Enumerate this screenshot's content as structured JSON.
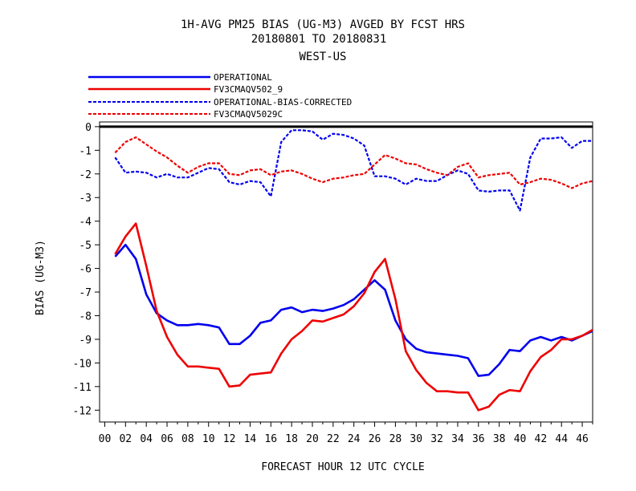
{
  "chart_data": {
    "type": "line",
    "title": [
      "1H-AVG PM25 BIAS (UG-M3)  AVGED BY FCST HRS",
      "20180801 TO 20180831",
      "WEST-US"
    ],
    "xlabel": "FORECAST HOUR  12 UTC CYCLE",
    "ylabel": "BIAS (UG-M3)",
    "xlim": [
      -0.5,
      47
    ],
    "ylim": [
      -12.5,
      0.2
    ],
    "xticks": [
      0,
      2,
      4,
      6,
      8,
      10,
      12,
      14,
      16,
      18,
      20,
      22,
      24,
      26,
      28,
      30,
      32,
      34,
      36,
      38,
      40,
      42,
      44,
      46
    ],
    "xtick_labels": [
      "00",
      "02",
      "04",
      "06",
      "08",
      "10",
      "12",
      "14",
      "16",
      "18",
      "20",
      "22",
      "24",
      "26",
      "28",
      "30",
      "32",
      "34",
      "36",
      "38",
      "40",
      "42",
      "44",
      "46"
    ],
    "yticks": [
      0,
      -1,
      -2,
      -3,
      -4,
      -5,
      -6,
      -7,
      -8,
      -9,
      -10,
      -11,
      -12
    ],
    "ytick_labels": [
      "0",
      "-1",
      "-2",
      "-3",
      "-4",
      "-5",
      "-6",
      "-7",
      "-8",
      "-9",
      "-10",
      "-11",
      "-12"
    ],
    "reference_line": 0,
    "grid": false,
    "legend_position": "top-left",
    "x": [
      1,
      2,
      3,
      4,
      5,
      6,
      7,
      8,
      9,
      10,
      11,
      12,
      13,
      14,
      15,
      16,
      17,
      18,
      19,
      20,
      21,
      22,
      23,
      24,
      25,
      26,
      27,
      28,
      29,
      30,
      31,
      32,
      33,
      34,
      35,
      36,
      37,
      38,
      39,
      40,
      41,
      42,
      43,
      44,
      45,
      46,
      47
    ],
    "series": [
      {
        "name": "OPERATIONAL",
        "color": "#0000ee",
        "dash": "solid",
        "values": [
          -5.5,
          -5.0,
          -5.6,
          -7.1,
          -7.9,
          -8.2,
          -8.4,
          -8.4,
          -8.35,
          -8.4,
          -8.5,
          -9.2,
          -9.2,
          -8.85,
          -8.3,
          -8.2,
          -7.75,
          -7.65,
          -7.85,
          -7.75,
          -7.8,
          -7.7,
          -7.55,
          -7.3,
          -6.9,
          -6.5,
          -6.9,
          -8.2,
          -9.0,
          -9.4,
          -9.55,
          -9.6,
          -9.65,
          -9.7,
          -9.8,
          -10.55,
          -10.5,
          -10.05,
          -9.45,
          -9.5,
          -9.05,
          -8.9,
          -9.05,
          -8.9,
          -9.05,
          -8.85,
          -8.65
        ]
      },
      {
        "name": "FV3CMAQV502_9",
        "color": "#ee0000",
        "dash": "solid",
        "values": [
          -5.4,
          -4.65,
          -4.1,
          -5.9,
          -7.8,
          -8.9,
          -9.65,
          -10.15,
          -10.15,
          -10.2,
          -10.25,
          -11.0,
          -10.95,
          -10.5,
          -10.45,
          -10.4,
          -9.6,
          -9.0,
          -8.65,
          -8.2,
          -8.25,
          -8.1,
          -7.95,
          -7.6,
          -7.05,
          -6.15,
          -5.6,
          -7.3,
          -9.5,
          -10.3,
          -10.85,
          -11.2,
          -11.2,
          -11.25,
          -11.25,
          -12.0,
          -11.85,
          -11.35,
          -11.15,
          -11.2,
          -10.35,
          -9.75,
          -9.45,
          -9.0,
          -9.0,
          -8.85,
          -8.6
        ]
      },
      {
        "name": "OPERATIONAL-BIAS-CORRECTED",
        "color": "#0000ee",
        "dash": "dashed",
        "values": [
          -1.3,
          -1.95,
          -1.9,
          -1.95,
          -2.15,
          -2.0,
          -2.15,
          -2.15,
          -1.95,
          -1.75,
          -1.8,
          -2.35,
          -2.45,
          -2.3,
          -2.35,
          -2.95,
          -0.65,
          -0.15,
          -0.15,
          -0.2,
          -0.55,
          -0.3,
          -0.35,
          -0.5,
          -0.8,
          -2.1,
          -2.1,
          -2.2,
          -2.45,
          -2.2,
          -2.3,
          -2.3,
          -2.05,
          -1.85,
          -2.0,
          -2.7,
          -2.75,
          -2.7,
          -2.7,
          -3.55,
          -1.3,
          -0.5,
          -0.5,
          -0.45,
          -0.9,
          -0.6,
          -0.6
        ]
      },
      {
        "name": "FV3CMAQV5029C",
        "color": "#ee0000",
        "dash": "dashed",
        "values": [
          -1.1,
          -0.65,
          -0.45,
          -0.75,
          -1.05,
          -1.3,
          -1.65,
          -1.95,
          -1.7,
          -1.55,
          -1.55,
          -2.0,
          -2.05,
          -1.85,
          -1.8,
          -2.05,
          -1.9,
          -1.85,
          -2.0,
          -2.2,
          -2.35,
          -2.2,
          -2.15,
          -2.05,
          -2.0,
          -1.6,
          -1.2,
          -1.35,
          -1.55,
          -1.6,
          -1.8,
          -1.95,
          -2.05,
          -1.7,
          -1.55,
          -2.15,
          -2.05,
          -2.0,
          -1.95,
          -2.45,
          -2.35,
          -2.2,
          -2.25,
          -2.4,
          -2.6,
          -2.4,
          -2.3
        ]
      }
    ]
  }
}
